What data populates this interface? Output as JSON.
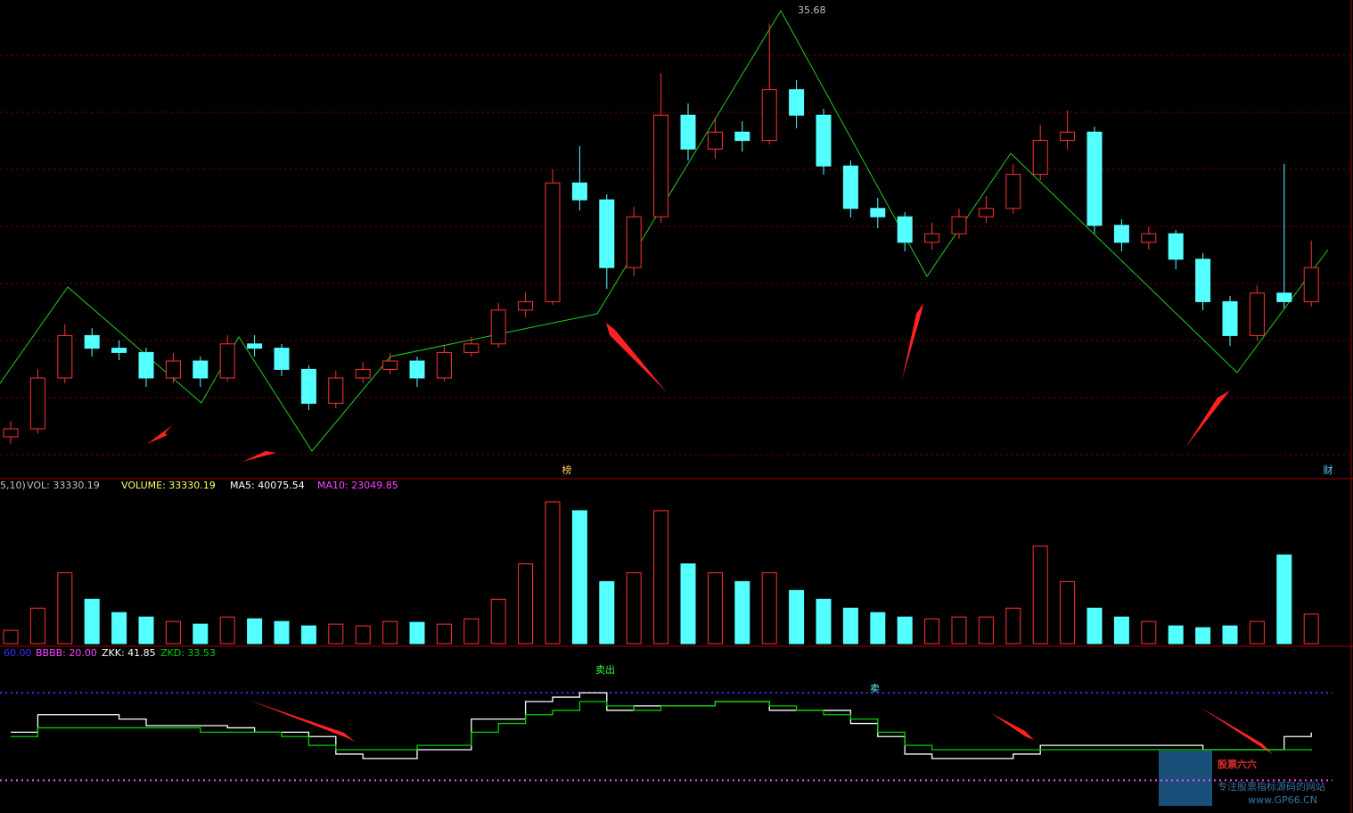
{
  "chart_data": [
    {
      "type": "candlestick",
      "open": [
        12.5,
        12.95,
        15.8,
        18.18,
        17.47,
        17.23,
        15.8,
        16.75,
        15.8,
        17.71,
        17.47,
        16.28,
        14.38,
        15.8,
        16.28,
        16.75,
        15.8,
        17.23,
        17.71,
        19.61,
        20.08,
        26.74,
        25.79,
        21.99,
        24.84,
        30.54,
        28.64,
        29.59,
        29.12,
        31.97,
        30.54,
        27.69,
        25.31,
        24.84,
        23.41,
        23.89,
        24.84,
        25.31,
        27.22,
        29.12,
        29.59,
        24.36,
        23.41,
        23.89,
        22.46,
        20.08,
        18.18,
        20.56,
        20.08
      ],
      "high": [
        13.4,
        16.3,
        18.8,
        18.6,
        17.9,
        17.5,
        17.2,
        17.0,
        18.2,
        18.2,
        17.7,
        16.5,
        16.2,
        16.7,
        17.2,
        17.0,
        17.6,
        18.1,
        20.0,
        20.6,
        27.5,
        28.8,
        26.1,
        25.4,
        32.9,
        31.2,
        30.4,
        30.2,
        35.68,
        32.5,
        30.9,
        28.0,
        25.9,
        25.1,
        24.5,
        25.3,
        26.0,
        27.8,
        30.0,
        30.8,
        29.9,
        24.7,
        24.3,
        24.1,
        22.8,
        20.4,
        21.0,
        27.8,
        23.5
      ],
      "low": [
        12.1,
        12.7,
        15.5,
        17.0,
        16.8,
        15.3,
        15.5,
        15.3,
        15.6,
        17.0,
        15.9,
        14.0,
        14.1,
        15.5,
        16.0,
        15.3,
        15.6,
        17.0,
        17.5,
        19.2,
        19.9,
        25.2,
        20.8,
        21.5,
        24.5,
        28.0,
        28.1,
        28.5,
        28.9,
        29.8,
        27.2,
        24.8,
        24.2,
        22.9,
        23.0,
        23.6,
        24.5,
        25.0,
        26.9,
        28.6,
        23.9,
        22.9,
        23.0,
        21.9,
        19.6,
        17.6,
        17.9,
        19.7,
        19.8
      ],
      "close": [
        12.95,
        15.8,
        18.18,
        17.47,
        17.23,
        15.8,
        16.75,
        15.8,
        17.71,
        17.47,
        16.28,
        14.38,
        15.8,
        16.28,
        16.75,
        15.8,
        17.23,
        17.71,
        19.61,
        20.08,
        26.74,
        25.79,
        21.99,
        24.84,
        30.54,
        28.64,
        29.59,
        29.12,
        31.97,
        30.54,
        27.69,
        25.31,
        24.84,
        23.41,
        23.89,
        24.84,
        25.31,
        27.22,
        29.12,
        29.59,
        24.36,
        23.41,
        23.89,
        22.46,
        20.08,
        18.18,
        20.56,
        20.08,
        21.99
      ],
      "ylim": [
        11,
        37
      ],
      "up_color": "#ff3232",
      "down_color": "#54ffff",
      "peak_label": "35.68",
      "markers": [
        "榜",
        "财"
      ]
    },
    {
      "type": "bar",
      "legend": [
        "5,10)",
        "VOL: 33330.19",
        "VOLUME: 33330.19",
        "MA5: 40075.54",
        "MA10: 23049.85"
      ],
      "values": [
        15000,
        40000,
        80000,
        50000,
        35000,
        30000,
        25000,
        22000,
        30000,
        28000,
        25000,
        20000,
        22000,
        20000,
        25000,
        24000,
        22000,
        28000,
        50000,
        90000,
        160000,
        150000,
        70000,
        80000,
        150000,
        90000,
        80000,
        70000,
        80000,
        60000,
        50000,
        40000,
        35000,
        30000,
        28000,
        30000,
        30000,
        40000,
        110000,
        70000,
        40000,
        30000,
        25000,
        20000,
        18000,
        20000,
        25000,
        100000,
        33330.19
      ],
      "ylim": [
        0,
        170000
      ]
    },
    {
      "type": "line",
      "legend": [
        "60.00",
        "BBBB: 20.00",
        "ZKK: 41.85",
        "ZKD: 33.53"
      ],
      "series": [
        {
          "color": "#ffffff",
          "values": [
            42,
            50,
            50,
            50,
            48,
            45,
            45,
            45,
            44,
            42,
            42,
            40,
            32,
            30,
            30,
            34,
            34,
            48,
            48,
            56,
            58,
            60,
            52,
            54,
            54,
            54,
            56,
            56,
            52,
            52,
            52,
            46,
            40,
            32,
            30,
            30,
            30,
            32,
            36,
            36,
            36,
            36,
            36,
            36,
            34,
            34,
            34,
            40,
            41.85
          ]
        },
        {
          "color": "#00d000",
          "values": [
            40,
            44,
            44,
            44,
            44,
            44,
            44,
            42,
            42,
            42,
            40,
            36,
            34,
            34,
            34,
            36,
            36,
            42,
            46,
            50,
            52,
            56,
            54,
            52,
            54,
            54,
            56,
            56,
            54,
            52,
            50,
            48,
            42,
            36,
            34,
            34,
            34,
            34,
            34,
            34,
            34,
            34,
            34,
            34,
            34,
            34,
            34,
            34,
            33.53
          ]
        }
      ],
      "levels": [
        60,
        20
      ],
      "ylim": [
        10,
        80
      ],
      "annotations": [
        "卖出",
        "卖"
      ]
    }
  ],
  "watermark": {
    "title": "股票六六",
    "subtitle": "专注股票指标源码的网站",
    "url": "www.GP66.CN"
  }
}
